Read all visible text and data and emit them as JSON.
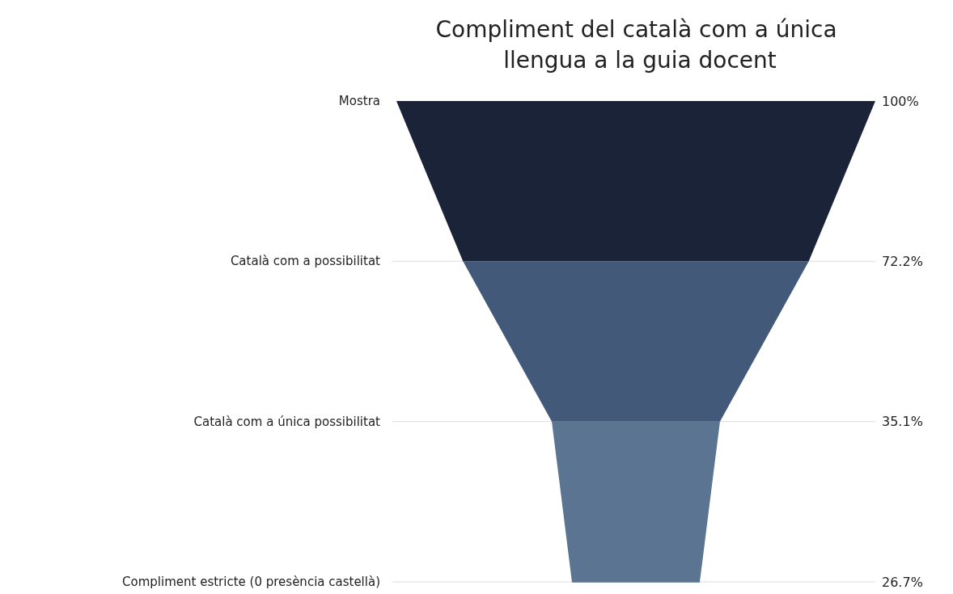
{
  "chart_data": {
    "type": "other",
    "title": "Compliment del català com a única llengua a la guia docent",
    "categories": [
      "Mostra",
      "Català com a possibilitat",
      "Català com a única possibilitat",
      "Compliment estricte (0 presència castellà)"
    ],
    "values": [
      100,
      72.2,
      35.1,
      26.7
    ],
    "value_labels": [
      "100%",
      "72.2%",
      "35.1%",
      "26.7%"
    ],
    "colors": [
      "#1b2338",
      "#42597a",
      "#5a7491",
      "#5a7491"
    ]
  }
}
